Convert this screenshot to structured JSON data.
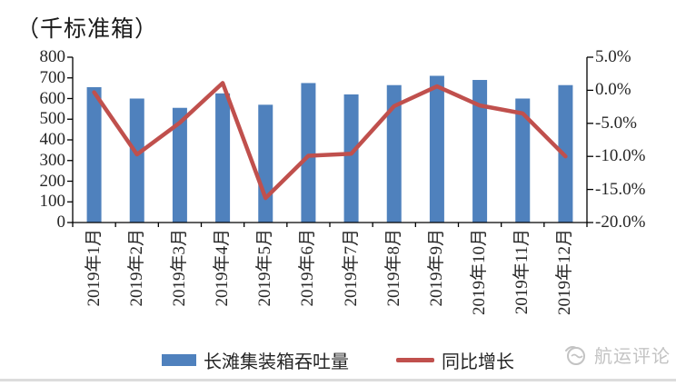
{
  "title": "（千标准箱）",
  "chart_data": {
    "type": "bar+line combo",
    "categories": [
      "2019年1月",
      "2019年2月",
      "2019年3月",
      "2019年4月",
      "2019年5月",
      "2019年6月",
      "2019年7月",
      "2019年8月",
      "2019年9月",
      "2019年10月",
      "2019年11月",
      "2019年12月"
    ],
    "series": [
      {
        "name": "长滩集装箱吞吐量",
        "type": "bar",
        "axis": "left",
        "unit": "千标准箱",
        "values": [
          655,
          600,
          555,
          625,
          570,
          675,
          620,
          665,
          710,
          690,
          600,
          665
        ]
      },
      {
        "name": "同比增长",
        "type": "line",
        "axis": "right",
        "unit": "%",
        "values": [
          -0.3,
          -9.7,
          -4.9,
          1.1,
          -16.3,
          -9.9,
          -9.6,
          -2.4,
          0.6,
          -2.3,
          -3.5,
          -10.0
        ]
      }
    ],
    "left_axis": {
      "min": 0,
      "max": 800,
      "tick_step": 100,
      "ticks": [
        "800",
        "700",
        "600",
        "500",
        "400",
        "300",
        "200",
        "100",
        "0"
      ]
    },
    "right_axis": {
      "min": -20,
      "max": 5,
      "tick_step": 5,
      "ticks": [
        "5.0%",
        "0.0%",
        "-5.0%",
        "-10.0%",
        "-15.0%",
        "-20.0%"
      ]
    },
    "grid": false,
    "legend_position": "bottom"
  },
  "colors": {
    "bar": "#4F81BD",
    "line": "#C0504D",
    "axis": "#000000",
    "text": "#262626",
    "watermark": "#c3c3c3"
  },
  "legend": {
    "items": [
      {
        "label": "长滩集装箱吞吐量",
        "swatch": "bar"
      },
      {
        "label": "同比增长",
        "swatch": "line"
      }
    ]
  },
  "watermark": {
    "text": "航运评论"
  }
}
